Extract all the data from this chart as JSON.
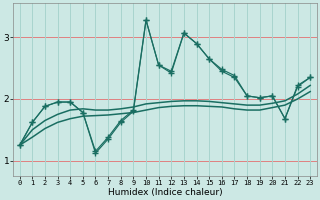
{
  "xlabel": "Humidex (Indice chaleur)",
  "bg_color": "#cce8e4",
  "grid_h_color": "#e08080",
  "grid_v_color": "#a8d4ce",
  "line_color": "#1a6e62",
  "xlim": [
    -0.5,
    23.5
  ],
  "ylim": [
    0.75,
    3.55
  ],
  "yticks": [
    1,
    2,
    3
  ],
  "xticks": [
    0,
    1,
    2,
    3,
    4,
    5,
    6,
    7,
    8,
    9,
    10,
    11,
    12,
    13,
    14,
    15,
    16,
    17,
    18,
    19,
    20,
    21,
    22,
    23
  ],
  "s1": [
    1.25,
    1.62,
    1.88,
    1.95,
    1.95,
    1.78,
    1.12,
    1.35,
    1.62,
    1.8,
    3.28,
    2.55,
    2.42,
    3.07,
    2.9,
    2.65,
    2.48,
    2.38,
    2.05,
    2.02,
    2.05,
    1.68,
    2.2,
    2.35
  ],
  "s2": [
    1.25,
    1.62,
    1.88,
    1.95,
    1.95,
    1.78,
    1.15,
    1.38,
    1.65,
    1.82,
    3.28,
    2.55,
    2.45,
    3.07,
    2.9,
    2.65,
    2.45,
    2.35,
    2.05,
    2.02,
    2.05,
    1.68,
    2.22,
    2.35
  ],
  "smooth1": [
    1.25,
    1.5,
    1.65,
    1.75,
    1.82,
    1.84,
    1.82,
    1.82,
    1.84,
    1.87,
    1.92,
    1.94,
    1.96,
    1.97,
    1.97,
    1.96,
    1.94,
    1.92,
    1.9,
    1.9,
    1.93,
    1.97,
    2.08,
    2.22
  ],
  "smooth2": [
    1.25,
    1.38,
    1.52,
    1.62,
    1.68,
    1.72,
    1.73,
    1.74,
    1.76,
    1.78,
    1.82,
    1.86,
    1.88,
    1.89,
    1.89,
    1.88,
    1.87,
    1.84,
    1.82,
    1.82,
    1.86,
    1.9,
    2.0,
    2.12
  ]
}
